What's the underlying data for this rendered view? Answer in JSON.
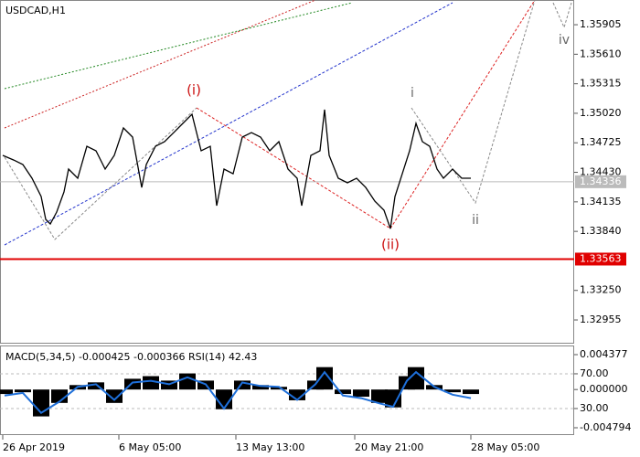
{
  "chart_data": [
    {
      "type": "line",
      "title": "USDCAD,H1",
      "color": "#000000",
      "x": [
        3,
        15,
        25,
        35,
        45,
        50,
        55,
        62,
        70,
        75,
        85,
        95,
        105,
        115,
        125,
        135,
        145,
        155,
        160,
        170,
        180,
        190,
        200,
        210,
        215,
        220,
        230,
        237,
        245,
        255,
        265,
        275,
        285,
        295,
        305,
        315,
        325,
        330,
        340,
        350,
        355,
        360,
        370,
        380,
        390,
        400,
        410,
        420,
        427,
        432,
        440,
        448,
        455,
        462,
        470,
        478,
        485,
        495,
        505,
        515
      ],
      "values": [
        1.34599,
        1.34553,
        1.34508,
        1.34371,
        1.34188,
        1.3396,
        1.33914,
        1.34033,
        1.34234,
        1.34462,
        1.34371,
        1.3469,
        1.34645,
        1.34462,
        1.34599,
        1.34873,
        1.34782,
        1.34279,
        1.34508,
        1.3469,
        1.34736,
        1.34827,
        1.34919,
        1.3501,
        1.34827,
        1.34645,
        1.3469,
        1.34097,
        1.34462,
        1.34416,
        1.34782,
        1.34827,
        1.34782,
        1.34645,
        1.34736,
        1.34462,
        1.34371,
        1.34097,
        1.34599,
        1.34645,
        1.35056,
        1.34599,
        1.34371,
        1.34325,
        1.34371,
        1.34279,
        1.34142,
        1.34051,
        1.33868,
        1.34188,
        1.34416,
        1.34645,
        1.34919,
        1.34736,
        1.3469,
        1.34462,
        1.34371,
        1.34462,
        1.34371,
        1.34371
      ],
      "xlim": [
        0,
        628
      ],
      "ylim": [
        1.32727,
        1.36152
      ],
      "yticks": [
        {
          "value": 1.35905,
          "label": "1.35905"
        },
        {
          "value": 1.3561,
          "label": "1.35610"
        },
        {
          "value": 1.35315,
          "label": "1.35315"
        },
        {
          "value": 1.3502,
          "label": "1.35020"
        },
        {
          "value": 1.34725,
          "label": "1.34725"
        },
        {
          "value": 1.3443,
          "label": "1.34430"
        },
        {
          "value": 1.34135,
          "label": "1.34135"
        },
        {
          "value": 1.3384,
          "label": "1.33840"
        },
        {
          "value": 1.3325,
          "label": "1.33250"
        },
        {
          "value": 1.32955,
          "label": "1.32955"
        }
      ],
      "xticks": [
        {
          "value": 3,
          "label": "26 Apr 2019"
        },
        {
          "value": 130,
          "label": "6 May 05:00"
        },
        {
          "value": 258,
          "label": "13 May 13:00"
        },
        {
          "value": 388,
          "label": "20 May 21:00"
        },
        {
          "value": 515,
          "label": "28 May 05:00"
        }
      ],
      "annotations": [
        "(i)",
        "(ii)",
        "i",
        "ii",
        "iv"
      ],
      "support_level": 1.33563,
      "support_color": "#e00000",
      "current_price": 1.34336
    },
    {
      "type": "macd",
      "indicator_label": "MACD(5,34,5)",
      "macd_value": -0.000425,
      "signal_value": -0.000366,
      "rsi_label": "RSI(14)",
      "rsi_value": 42.43,
      "color": "#000000",
      "x": [
        5,
        25,
        45,
        65,
        85,
        105,
        125,
        145,
        165,
        185,
        205,
        225,
        245,
        265,
        285,
        305,
        325,
        345,
        355,
        375,
        395,
        415,
        430,
        445,
        455,
        475,
        495,
        515
      ],
      "values": [
        -0.00056,
        -0.00034,
        -0.00337,
        -0.00168,
        0.00056,
        0.0009,
        -0.00168,
        0.00135,
        0.00168,
        0.00112,
        0.00202,
        0.00112,
        -0.00247,
        0.00112,
        0.00056,
        0.00034,
        -0.00135,
        0.00112,
        0.00281,
        -0.00056,
        -0.0009,
        -0.00168,
        -0.00224,
        0.00168,
        0.00281,
        0.00056,
        -0.00034,
        -0.00056
      ],
      "ylim": [
        -0.005596,
        0.005523
      ],
      "yticks": [
        0.004377,
        {
          "value": 0,
          "label": "0.000000"
        },
        -0.004794
      ],
      "rsi": {
        "color": "#1e6fd9",
        "values": [
          45,
          48,
          25,
          38,
          55,
          58,
          40,
          60,
          62,
          58,
          66,
          58,
          30,
          60,
          56,
          55,
          40,
          58,
          72,
          45,
          42,
          36,
          32,
          62,
          72,
          55,
          46,
          42
        ],
        "ylim": [
          0.5,
          102.6
        ],
        "yticks": [
          {
            "value": 70,
            "label": "70.00"
          },
          {
            "value": 30,
            "label": "30.00"
          }
        ]
      }
    }
  ]
}
